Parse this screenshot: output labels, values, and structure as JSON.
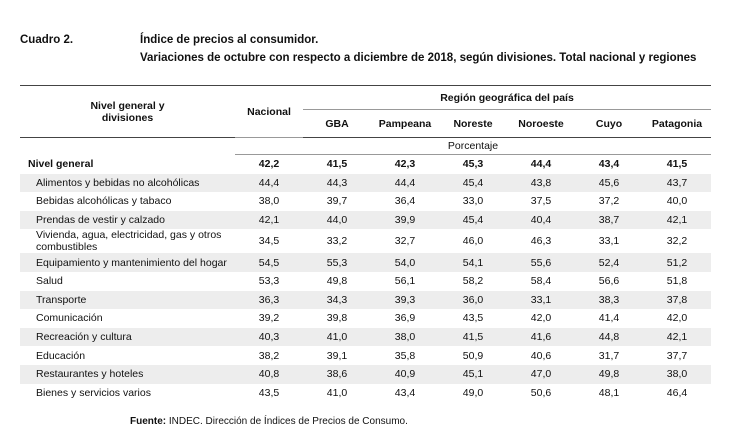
{
  "header": {
    "label": "Cuadro 2.",
    "title": "Índice de precios al consumidor.",
    "subtitle": "Variaciones de octubre con respecto a diciembre de 2018, según divisiones. Total nacional y regiones"
  },
  "table": {
    "row_header": "Nivel general y divisiones",
    "national": "Nacional",
    "region_group": "Región geográfica del país",
    "regions": [
      "GBA",
      "Pampeana",
      "Noreste",
      "Noroeste",
      "Cuyo",
      "Patagonia"
    ],
    "unit": "Porcentaje",
    "rows": [
      [
        "Nivel general",
        "42,2",
        "41,5",
        "42,3",
        "45,3",
        "44,4",
        "43,4",
        "41,5"
      ],
      [
        "Alimentos y bebidas no alcohólicas",
        "44,4",
        "44,3",
        "44,4",
        "45,4",
        "43,8",
        "45,6",
        "43,7"
      ],
      [
        "Bebidas alcohólicas y tabaco",
        "38,0",
        "39,7",
        "36,4",
        "33,0",
        "37,5",
        "37,2",
        "40,0"
      ],
      [
        "Prendas de vestir y calzado",
        "42,1",
        "44,0",
        "39,9",
        "45,4",
        "40,4",
        "38,7",
        "42,1"
      ],
      [
        "Vivienda, agua, electricidad, gas y otros combustibles",
        "34,5",
        "33,2",
        "32,7",
        "46,0",
        "46,3",
        "33,1",
        "32,2"
      ],
      [
        "Equipamiento y mantenimiento del hogar",
        "54,5",
        "55,3",
        "54,0",
        "54,1",
        "55,6",
        "52,4",
        "51,2"
      ],
      [
        "Salud",
        "53,3",
        "49,8",
        "56,1",
        "58,2",
        "58,4",
        "56,6",
        "51,8"
      ],
      [
        "Transporte",
        "36,3",
        "34,3",
        "39,3",
        "36,0",
        "33,1",
        "38,3",
        "37,8"
      ],
      [
        "Comunicación",
        "39,2",
        "39,8",
        "36,9",
        "43,5",
        "42,0",
        "41,4",
        "42,0"
      ],
      [
        "Recreación y cultura",
        "40,3",
        "41,0",
        "38,0",
        "41,5",
        "41,6",
        "44,8",
        "42,1"
      ],
      [
        "Educación",
        "38,2",
        "39,1",
        "35,8",
        "50,9",
        "40,6",
        "31,7",
        "37,7"
      ],
      [
        "Restaurantes y hoteles",
        "40,8",
        "38,6",
        "40,9",
        "45,1",
        "47,0",
        "49,8",
        "38,0"
      ],
      [
        "Bienes y servicios varios",
        "43,5",
        "41,0",
        "43,4",
        "49,0",
        "50,6",
        "48,1",
        "46,4"
      ]
    ]
  },
  "footer": {
    "label": "Fuente:",
    "text": "INDEC. Dirección de Índices de Precios de Consumo."
  }
}
